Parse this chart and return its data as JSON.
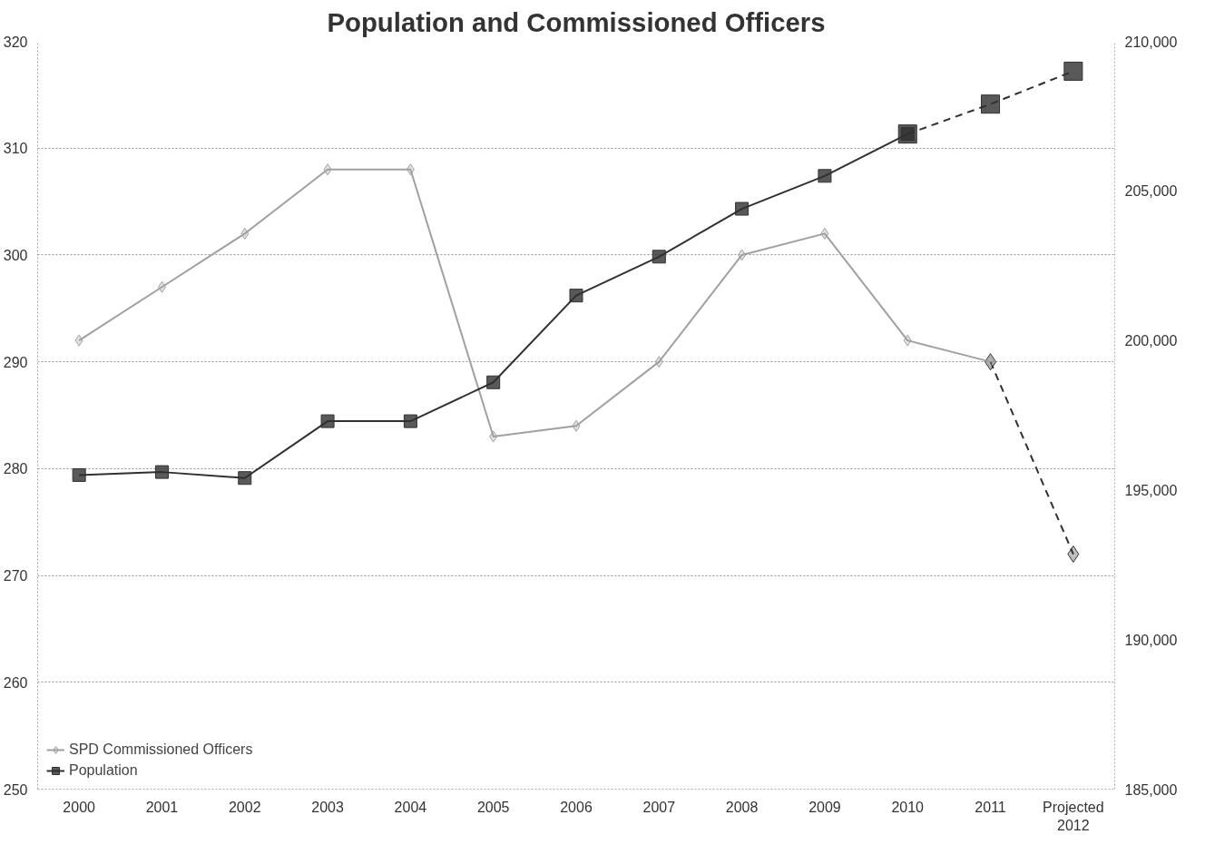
{
  "chart_data": {
    "type": "line",
    "title": "Population and Commissioned Officers",
    "categories": [
      "2000",
      "2001",
      "2002",
      "2003",
      "2004",
      "2005",
      "2006",
      "2007",
      "2008",
      "2009",
      "2010",
      "2011",
      "Projected\n2012"
    ],
    "ylim": [
      250,
      320
    ],
    "yticks": [
      250,
      260,
      270,
      280,
      290,
      300,
      310,
      320
    ],
    "y2lim": [
      185000,
      210000
    ],
    "y2ticks": [
      {
        "value": 185000,
        "label": "185,000"
      },
      {
        "value": 190000,
        "label": "190,000"
      },
      {
        "value": 195000,
        "label": "195,000"
      },
      {
        "value": 200000,
        "label": "200,000"
      },
      {
        "value": 205000,
        "label": "205,000"
      },
      {
        "value": 210000,
        "label": "210,000"
      }
    ],
    "grid": "y",
    "legend": "bottom left",
    "series": [
      {
        "color": "#303030",
        "line_style": "dashed",
        "marker": "diamond",
        "values": [
          null,
          null,
          null,
          null,
          null,
          null,
          null,
          null,
          null,
          null,
          null,
          290,
          272
        ]
      },
      {
        "color": "#303030",
        "line_style": "dashed",
        "marker": "square",
        "axis": "y2",
        "values": [
          null,
          null,
          null,
          null,
          null,
          null,
          null,
          null,
          null,
          null,
          206900,
          207900,
          209000
        ]
      },
      {
        "name": "SPD Commissioned Officers",
        "color": "#a0a0a0",
        "marker": "diamond",
        "values": [
          292,
          297,
          302,
          308,
          308,
          283,
          284,
          290,
          300,
          302,
          292,
          290,
          null
        ]
      },
      {
        "name": "Population",
        "color": "#303030",
        "marker": "square",
        "axis": "y2",
        "values": [
          195500,
          195600,
          195400,
          197300,
          197300,
          198600,
          201500,
          202800,
          204400,
          205500,
          206900,
          null,
          null
        ]
      }
    ]
  }
}
